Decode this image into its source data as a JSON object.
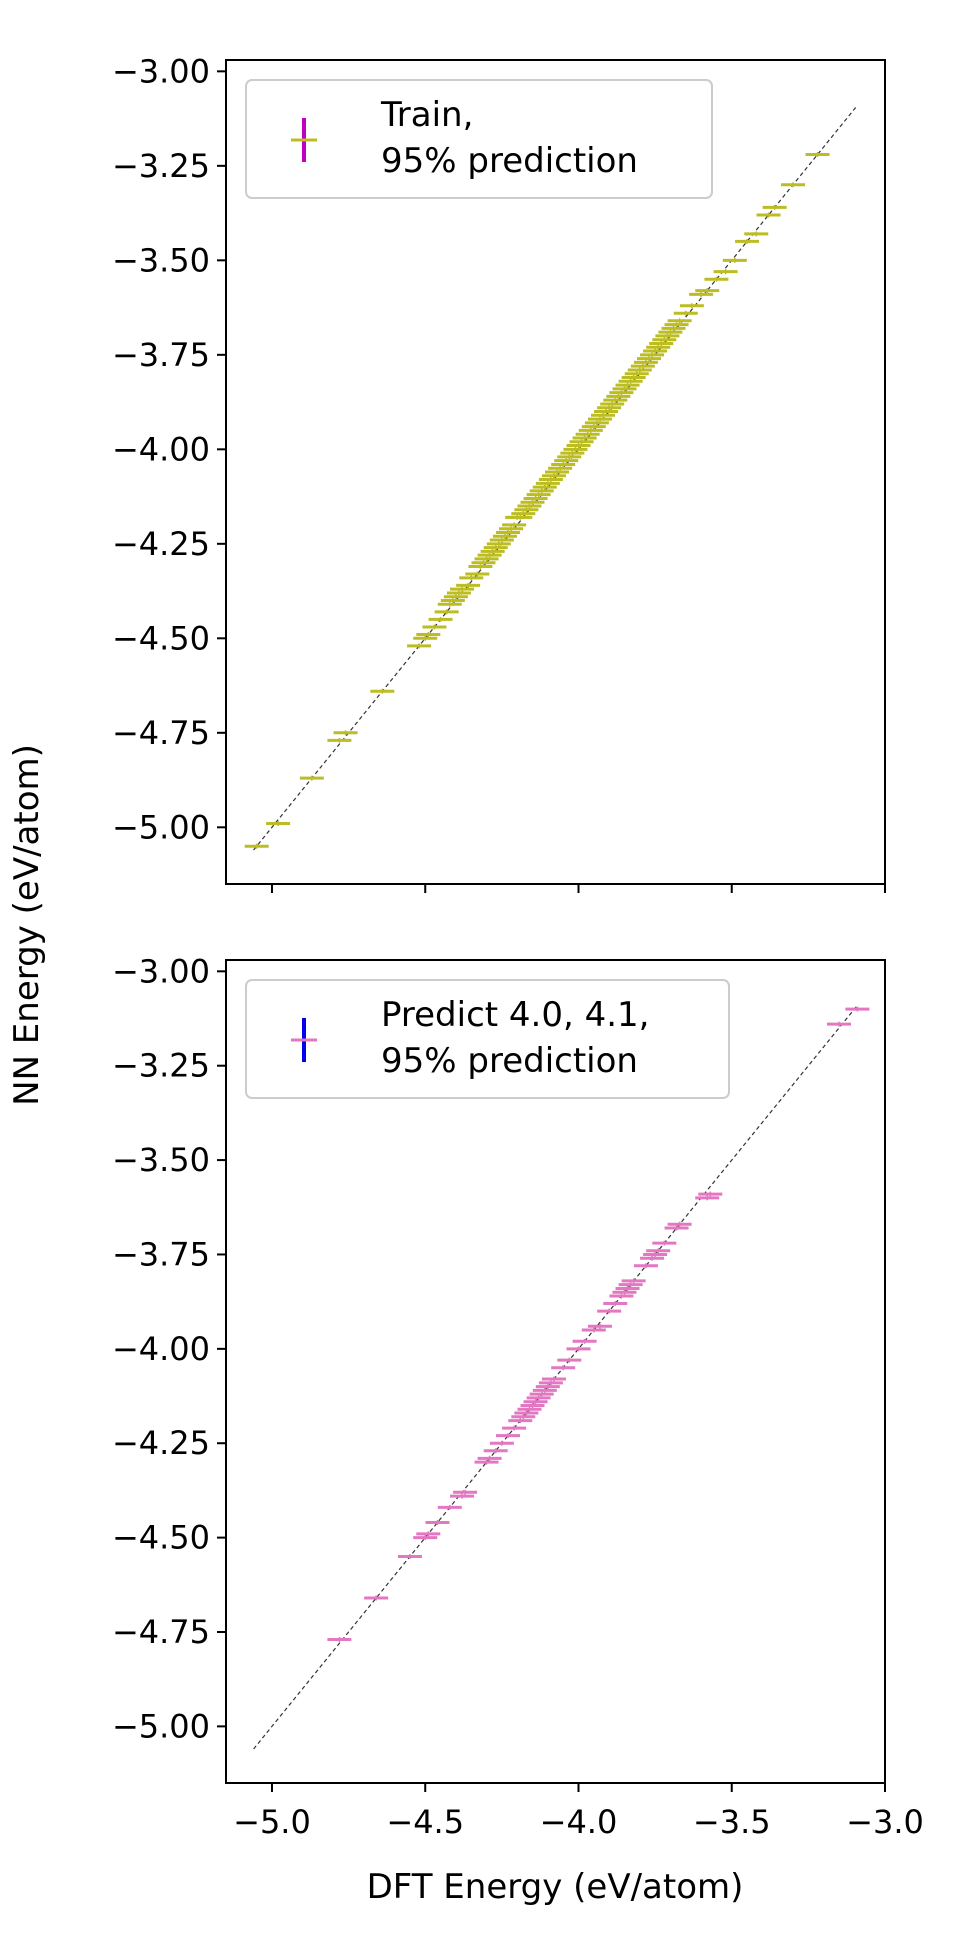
{
  "figure": {
    "ylabel": "NN Energy (eV/atom)",
    "xlabel": "DFT Energy (eV/atom)"
  },
  "colors": {
    "train_points": "#bcbd22",
    "predict_points": "#e377c2",
    "train_errorbar": "#c000c0",
    "predict_errorbar": "#0000ee",
    "diagonal": "#333333"
  },
  "chart_data": [
    {
      "type": "scatter",
      "panel": "top",
      "xlim": [
        -5.15,
        -3.0
      ],
      "ylim": [
        -5.15,
        -2.97
      ],
      "yticks": [
        "−3.00",
        "−3.25",
        "−3.50",
        "−3.75",
        "−4.00",
        "−4.25",
        "−4.50",
        "−4.75",
        "−5.00"
      ],
      "xticks": [
        "−5.0",
        "−4.5",
        "−4.0",
        "−3.5",
        "−3.0"
      ],
      "show_xtick_labels": false,
      "legend": {
        "line1": "Train,",
        "line2": "95% prediction",
        "position": "upper-left"
      },
      "diagonal": [
        [
          -5.06,
          -5.06
        ],
        [
          -3.09,
          -3.09
        ]
      ],
      "series": [
        {
          "name": "Train, 95% prediction",
          "x": [
            -5.05,
            -4.98,
            -4.87,
            -4.78,
            -4.76,
            -4.64,
            -4.52,
            -4.5,
            -4.49,
            -4.47,
            -4.45,
            -4.43,
            -4.42,
            -4.41,
            -4.4,
            -4.39,
            -4.38,
            -4.36,
            -4.35,
            -4.33,
            -4.32,
            -4.31,
            -4.3,
            -4.29,
            -4.28,
            -4.27,
            -4.26,
            -4.25,
            -4.24,
            -4.23,
            -4.22,
            -4.21,
            -4.2,
            -4.19,
            -4.18,
            -4.17,
            -4.16,
            -4.15,
            -4.14,
            -4.13,
            -4.12,
            -4.11,
            -4.1,
            -4.09,
            -4.08,
            -4.07,
            -4.06,
            -4.05,
            -4.04,
            -4.03,
            -4.02,
            -4.01,
            -4.0,
            -3.99,
            -3.98,
            -3.97,
            -3.96,
            -3.95,
            -3.94,
            -3.93,
            -3.92,
            -3.91,
            -3.9,
            -3.89,
            -3.88,
            -3.87,
            -3.86,
            -3.85,
            -3.84,
            -3.83,
            -3.82,
            -3.81,
            -3.8,
            -3.79,
            -3.78,
            -3.77,
            -3.76,
            -3.75,
            -3.74,
            -3.73,
            -3.72,
            -3.71,
            -3.7,
            -3.69,
            -3.68,
            -3.67,
            -3.65,
            -3.63,
            -3.6,
            -3.58,
            -3.55,
            -3.52,
            -3.49,
            -3.45,
            -3.42,
            -3.38,
            -3.36,
            -3.3,
            -3.22
          ],
          "y": [
            -5.05,
            -4.99,
            -4.87,
            -4.77,
            -4.75,
            -4.64,
            -4.52,
            -4.5,
            -4.49,
            -4.47,
            -4.45,
            -4.43,
            -4.41,
            -4.4,
            -4.39,
            -4.38,
            -4.37,
            -4.36,
            -4.34,
            -4.33,
            -4.31,
            -4.3,
            -4.29,
            -4.28,
            -4.27,
            -4.26,
            -4.25,
            -4.24,
            -4.23,
            -4.22,
            -4.21,
            -4.2,
            -4.18,
            -4.18,
            -4.17,
            -4.16,
            -4.15,
            -4.14,
            -4.13,
            -4.12,
            -4.11,
            -4.1,
            -4.09,
            -4.08,
            -4.07,
            -4.06,
            -4.05,
            -4.04,
            -4.03,
            -4.02,
            -4.01,
            -4.0,
            -3.99,
            -3.98,
            -3.97,
            -3.96,
            -3.95,
            -3.94,
            -3.93,
            -3.92,
            -3.91,
            -3.9,
            -3.89,
            -3.88,
            -3.87,
            -3.86,
            -3.85,
            -3.84,
            -3.83,
            -3.82,
            -3.81,
            -3.8,
            -3.79,
            -3.78,
            -3.77,
            -3.76,
            -3.75,
            -3.74,
            -3.73,
            -3.72,
            -3.71,
            -3.7,
            -3.69,
            -3.68,
            -3.67,
            -3.66,
            -3.64,
            -3.62,
            -3.59,
            -3.58,
            -3.55,
            -3.53,
            -3.5,
            -3.45,
            -3.43,
            -3.38,
            -3.36,
            -3.3,
            -3.22
          ]
        }
      ]
    },
    {
      "type": "scatter",
      "panel": "bottom",
      "xlim": [
        -5.15,
        -3.0
      ],
      "ylim": [
        -5.15,
        -2.97
      ],
      "yticks": [
        "−3.00",
        "−3.25",
        "−3.50",
        "−3.75",
        "−4.00",
        "−4.25",
        "−4.50",
        "−4.75",
        "−5.00"
      ],
      "xticks": [
        "−5.0",
        "−4.5",
        "−4.0",
        "−3.5",
        "−3.0"
      ],
      "show_xtick_labels": true,
      "legend": {
        "line1": "Predict 4.0, 4.1,",
        "line2": "95% prediction",
        "position": "upper-left"
      },
      "diagonal": [
        [
          -5.06,
          -5.06
        ],
        [
          -3.09,
          -3.09
        ]
      ],
      "series": [
        {
          "name": "Predict 4.0, 4.1, 95% prediction",
          "x": [
            -4.78,
            -4.66,
            -4.55,
            -4.5,
            -4.49,
            -4.46,
            -4.42,
            -4.38,
            -4.37,
            -4.3,
            -4.29,
            -4.27,
            -4.25,
            -4.23,
            -4.21,
            -4.19,
            -4.18,
            -4.17,
            -4.16,
            -4.15,
            -4.14,
            -4.13,
            -4.12,
            -4.11,
            -4.1,
            -4.09,
            -4.08,
            -4.05,
            -4.03,
            -4.0,
            -3.98,
            -3.95,
            -3.93,
            -3.9,
            -3.88,
            -3.86,
            -3.85,
            -3.84,
            -3.83,
            -3.82,
            -3.78,
            -3.76,
            -3.75,
            -3.74,
            -3.72,
            -3.68,
            -3.67,
            -3.58,
            -3.57,
            -3.15,
            -3.09
          ],
          "y": [
            -4.77,
            -4.66,
            -4.55,
            -4.5,
            -4.49,
            -4.46,
            -4.42,
            -4.39,
            -4.38,
            -4.3,
            -4.29,
            -4.27,
            -4.25,
            -4.23,
            -4.21,
            -4.19,
            -4.18,
            -4.17,
            -4.16,
            -4.15,
            -4.14,
            -4.13,
            -4.12,
            -4.11,
            -4.1,
            -4.09,
            -4.08,
            -4.05,
            -4.03,
            -4.0,
            -3.98,
            -3.95,
            -3.94,
            -3.9,
            -3.88,
            -3.86,
            -3.85,
            -3.84,
            -3.83,
            -3.82,
            -3.78,
            -3.76,
            -3.75,
            -3.74,
            -3.72,
            -3.68,
            -3.67,
            -3.6,
            -3.59,
            -3.14,
            -3.1
          ]
        }
      ]
    }
  ]
}
